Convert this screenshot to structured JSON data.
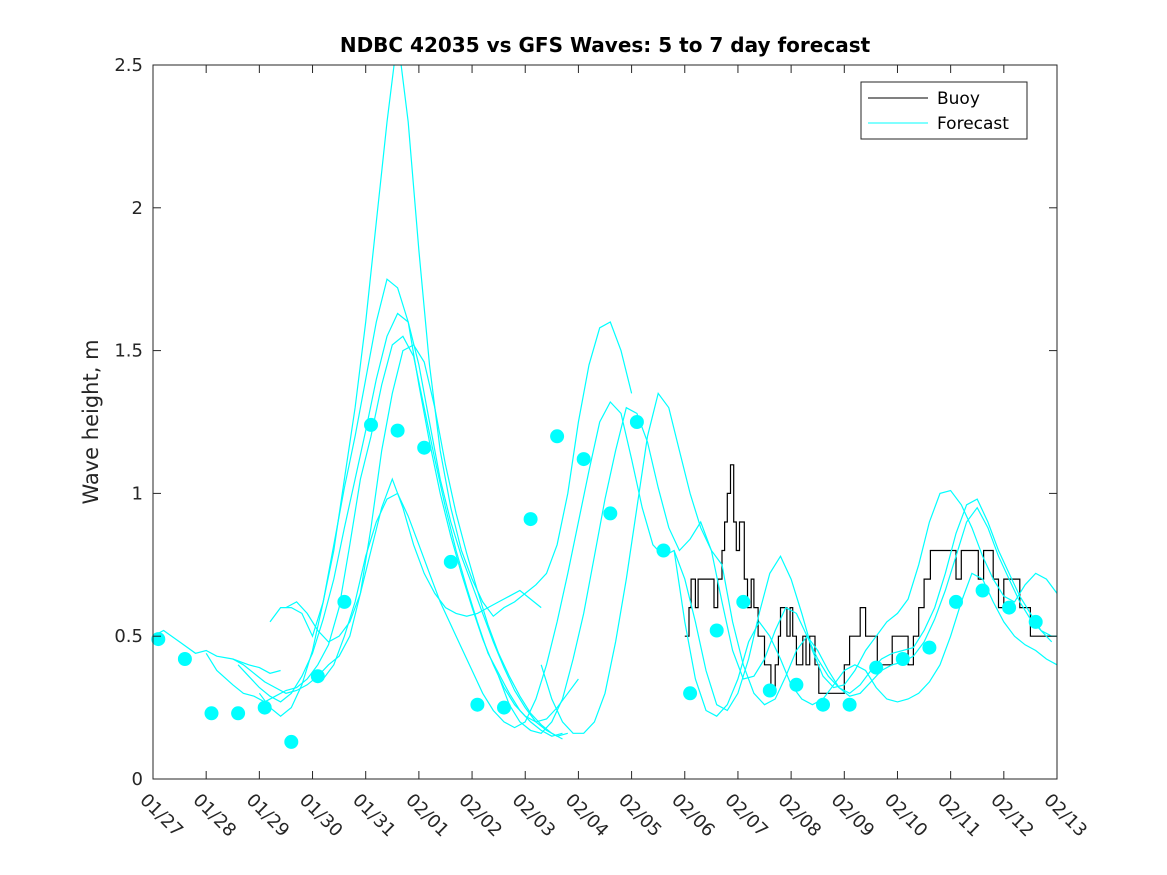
{
  "chart_data": {
    "type": "line",
    "title": "NDBC 42035 vs GFS Waves: 5 to 7 day forecast",
    "xlabel": "",
    "ylabel": "Wave height, m",
    "xlim": [
      0,
      17
    ],
    "ylim": [
      0,
      2.5
    ],
    "x_tick_labels": [
      "01/27",
      "01/28",
      "01/29",
      "01/30",
      "01/31",
      "02/01",
      "02/02",
      "02/03",
      "02/04",
      "02/05",
      "02/06",
      "02/07",
      "02/08",
      "02/09",
      "02/10",
      "02/11",
      "02/12",
      "02/13"
    ],
    "y_ticks": [
      0,
      0.5,
      1,
      1.5,
      2,
      2.5
    ],
    "y_tick_labels": [
      "0",
      "0.5",
      "1",
      "1.5",
      "2",
      "2.5"
    ],
    "legend": {
      "position": "top-right",
      "entries": [
        {
          "label": "Buoy",
          "color": "#000000"
        },
        {
          "label": "Forecast",
          "color": "#00ffff"
        }
      ]
    },
    "colors": {
      "buoy": "#000000",
      "forecast": "#00ffff",
      "markers": "#00ffff"
    },
    "series": [
      {
        "name": "Buoy",
        "x": [
          10.0,
          10.08,
          10.12,
          10.2,
          10.25,
          10.3,
          10.5,
          10.55,
          10.62,
          10.7,
          10.75,
          10.8,
          10.86,
          10.92,
          10.97,
          11.03,
          11.08,
          11.12,
          11.18,
          11.25,
          11.3,
          11.38,
          11.42,
          11.5,
          11.55,
          11.62,
          11.7,
          11.76,
          11.8,
          11.86,
          11.92,
          11.98,
          12.03,
          12.1,
          12.16,
          12.22,
          12.28,
          12.35,
          12.45,
          12.52,
          12.6,
          12.66,
          12.72,
          12.78,
          12.84,
          12.92,
          13.0,
          13.1,
          13.2,
          13.3,
          13.4,
          13.5,
          13.62,
          13.7,
          13.8,
          13.9,
          14.02,
          14.1,
          14.2,
          14.3,
          14.4,
          14.5,
          14.62,
          14.72,
          14.8,
          14.9,
          15.0,
          15.1,
          15.2,
          15.3,
          15.42,
          15.52,
          15.62,
          15.72,
          15.8,
          15.9,
          16.0,
          16.1,
          16.2,
          16.3,
          16.4,
          16.5,
          16.6,
          16.8,
          17.0
        ],
        "y": [
          0.5,
          0.6,
          0.7,
          0.6,
          0.7,
          0.7,
          0.7,
          0.6,
          0.7,
          0.8,
          0.9,
          1.0,
          1.1,
          0.9,
          0.8,
          0.9,
          0.9,
          0.7,
          0.6,
          0.7,
          0.6,
          0.5,
          0.5,
          0.4,
          0.4,
          0.3,
          0.4,
          0.5,
          0.6,
          0.6,
          0.5,
          0.6,
          0.5,
          0.4,
          0.4,
          0.5,
          0.4,
          0.5,
          0.4,
          0.3,
          0.3,
          0.3,
          0.3,
          0.3,
          0.3,
          0.3,
          0.4,
          0.5,
          0.5,
          0.6,
          0.5,
          0.5,
          0.4,
          0.4,
          0.4,
          0.5,
          0.5,
          0.5,
          0.4,
          0.5,
          0.6,
          0.7,
          0.8,
          0.8,
          0.8,
          0.8,
          0.8,
          0.7,
          0.8,
          0.8,
          0.8,
          0.7,
          0.8,
          0.8,
          0.7,
          0.6,
          0.7,
          0.7,
          0.7,
          0.6,
          0.6,
          0.5,
          0.5,
          0.5,
          0.5
        ]
      },
      {
        "name": "Forecast",
        "x": [
          0.0,
          0.2,
          0.5,
          0.8,
          1.0,
          1.2,
          1.5,
          1.8,
          2.0,
          2.2,
          2.4
        ],
        "y": [
          0.5,
          0.52,
          0.48,
          0.44,
          0.45,
          0.43,
          0.42,
          0.4,
          0.39,
          0.37,
          0.38
        ]
      },
      {
        "name": "Forecast",
        "x": [
          1.0,
          1.2,
          1.5,
          1.7,
          1.9,
          2.1,
          2.3,
          2.5,
          2.7,
          2.9,
          3.1,
          3.3,
          3.5,
          3.7,
          3.9,
          4.1,
          4.3,
          4.5,
          4.7,
          4.9,
          5.1,
          5.3,
          5.5,
          5.7,
          5.9,
          6.1,
          6.3,
          6.5,
          6.7,
          6.9,
          7.1,
          7.3,
          7.5,
          7.7
        ],
        "y": [
          0.44,
          0.38,
          0.33,
          0.3,
          0.29,
          0.27,
          0.29,
          0.31,
          0.32,
          0.35,
          0.4,
          0.47,
          0.6,
          0.82,
          1.05,
          1.2,
          1.38,
          1.52,
          1.55,
          1.48,
          1.3,
          1.12,
          0.95,
          0.8,
          0.67,
          0.55,
          0.44,
          0.37,
          0.3,
          0.24,
          0.2,
          0.17,
          0.15,
          0.16
        ]
      },
      {
        "name": "Forecast",
        "x": [
          1.5,
          1.7,
          1.9,
          2.1,
          2.3,
          2.5,
          2.7,
          2.9,
          3.1,
          3.3,
          3.5,
          3.7,
          3.9,
          4.1,
          4.3,
          4.5,
          4.7,
          4.9,
          5.1,
          5.3,
          5.5,
          5.7,
          5.9,
          6.1,
          6.3,
          6.5,
          6.7,
          6.9,
          7.1,
          7.3,
          7.5,
          7.7
        ],
        "y": [
          0.42,
          0.4,
          0.37,
          0.34,
          0.32,
          0.3,
          0.31,
          0.33,
          0.36,
          0.4,
          0.43,
          0.5,
          0.65,
          0.88,
          1.15,
          1.35,
          1.5,
          1.52,
          1.46,
          1.3,
          1.1,
          0.93,
          0.79,
          0.66,
          0.54,
          0.44,
          0.36,
          0.29,
          0.23,
          0.19,
          0.16,
          0.14
        ]
      },
      {
        "name": "Forecast",
        "x": [
          1.6,
          1.8,
          2.0,
          2.2,
          2.4,
          2.6,
          2.8,
          3.0,
          3.2,
          3.4,
          3.6,
          3.8,
          4.0,
          4.2,
          4.4,
          4.6,
          4.8,
          5.0,
          5.2,
          5.4,
          5.6,
          5.8,
          6.0,
          6.2,
          6.4,
          6.6,
          6.8,
          7.0,
          7.2,
          7.4,
          7.6,
          7.8
        ],
        "y": [
          0.4,
          0.36,
          0.32,
          0.29,
          0.27,
          0.3,
          0.36,
          0.44,
          0.56,
          0.7,
          0.88,
          1.05,
          1.22,
          1.4,
          1.55,
          1.63,
          1.6,
          1.45,
          1.25,
          1.05,
          0.9,
          0.78,
          0.68,
          0.58,
          0.48,
          0.39,
          0.31,
          0.25,
          0.2,
          0.17,
          0.15,
          0.16
        ]
      },
      {
        "name": "Forecast",
        "x": [
          2.0,
          2.2,
          2.4,
          2.6,
          2.8,
          3.0,
          3.2,
          3.4,
          3.6,
          3.8,
          4.0,
          4.2,
          4.4,
          4.6,
          4.8,
          5.0,
          5.2,
          5.4,
          5.6,
          5.8,
          6.0,
          6.2,
          6.4,
          6.6,
          6.8,
          7.0,
          7.2,
          7.4,
          7.6,
          7.8,
          8.0
        ],
        "y": [
          0.3,
          0.25,
          0.22,
          0.25,
          0.33,
          0.45,
          0.62,
          0.82,
          1.02,
          1.2,
          1.4,
          1.6,
          1.75,
          1.72,
          1.6,
          1.38,
          1.18,
          1.0,
          0.85,
          0.72,
          0.6,
          0.49,
          0.4,
          0.32,
          0.26,
          0.22,
          0.2,
          0.21,
          0.25,
          0.3,
          0.35
        ]
      },
      {
        "name": "Forecast",
        "x": [
          2.2,
          2.4,
          2.6,
          2.8,
          3.0,
          3.2,
          3.4,
          3.6,
          3.8,
          4.0,
          4.2,
          4.4,
          4.6,
          4.8,
          5.0,
          5.2,
          5.4,
          5.6,
          5.8,
          6.0,
          6.2,
          6.4,
          6.6,
          6.8,
          7.0,
          7.2,
          7.4,
          7.6,
          7.8,
          8.0,
          8.2,
          8.4,
          8.6,
          8.8,
          9.0
        ],
        "y": [
          0.55,
          0.6,
          0.6,
          0.58,
          0.5,
          0.62,
          0.8,
          1.05,
          1.3,
          1.6,
          1.95,
          2.3,
          2.6,
          2.3,
          1.85,
          1.45,
          1.15,
          0.95,
          0.8,
          0.7,
          0.62,
          0.57,
          0.6,
          0.62,
          0.65,
          0.68,
          0.72,
          0.82,
          1.0,
          1.25,
          1.45,
          1.58,
          1.6,
          1.5,
          1.35
        ]
      },
      {
        "name": "Forecast",
        "x": [
          2.5,
          2.7,
          2.9,
          3.1,
          3.3,
          3.5,
          3.7,
          3.9,
          4.1,
          4.3,
          4.5,
          4.7,
          4.9,
          5.1,
          5.3,
          5.5,
          5.7,
          5.9,
          6.1,
          6.3,
          6.5,
          6.7,
          6.9,
          7.1,
          7.3
        ],
        "y": [
          0.6,
          0.62,
          0.58,
          0.52,
          0.48,
          0.5,
          0.55,
          0.65,
          0.8,
          0.95,
          1.05,
          0.95,
          0.82,
          0.72,
          0.65,
          0.6,
          0.58,
          0.57,
          0.58,
          0.6,
          0.62,
          0.64,
          0.66,
          0.63,
          0.6
        ]
      },
      {
        "name": "Forecast",
        "x": [
          3.2,
          3.4,
          3.6,
          3.8,
          4.0,
          4.2,
          4.4,
          4.6,
          4.8,
          5.0,
          5.2,
          5.4,
          5.6,
          5.8,
          6.0,
          6.2,
          6.4,
          6.6,
          6.8,
          7.0,
          7.2,
          7.4,
          7.6,
          7.8,
          8.0,
          8.2,
          8.4,
          8.6,
          8.8,
          9.0,
          9.2,
          9.4,
          9.6,
          9.8,
          10.0,
          10.2,
          10.4,
          10.6,
          10.8,
          11.0,
          11.2,
          11.4,
          11.6,
          11.8,
          12.0,
          12.2,
          12.4,
          12.6,
          12.8,
          13.0,
          13.2,
          13.4,
          13.6,
          13.8,
          14.0,
          14.2,
          14.4,
          14.6,
          14.8,
          15.0,
          15.2,
          15.4,
          15.6,
          15.8,
          16.0,
          16.2,
          16.4,
          16.6,
          16.8,
          17.0
        ],
        "y": [
          0.35,
          0.4,
          0.5,
          0.62,
          0.78,
          0.9,
          0.98,
          1.0,
          0.92,
          0.82,
          0.72,
          0.62,
          0.54,
          0.46,
          0.38,
          0.3,
          0.24,
          0.2,
          0.18,
          0.2,
          0.28,
          0.4,
          0.55,
          0.72,
          0.9,
          1.08,
          1.25,
          1.32,
          1.28,
          1.12,
          0.95,
          0.82,
          0.78,
          0.8,
          0.7,
          0.55,
          0.38,
          0.26,
          0.24,
          0.3,
          0.42,
          0.58,
          0.72,
          0.78,
          0.7,
          0.58,
          0.45,
          0.36,
          0.32,
          0.33,
          0.38,
          0.45,
          0.5,
          0.55,
          0.58,
          0.63,
          0.75,
          0.9,
          1.0,
          1.01,
          0.96,
          0.88,
          0.78,
          0.7,
          0.64,
          0.62,
          0.68,
          0.72,
          0.7,
          0.65
        ]
      },
      {
        "name": "Forecast",
        "x": [
          6.5,
          6.7,
          6.9,
          7.1,
          7.3,
          7.5,
          7.7,
          7.9,
          8.1,
          8.3,
          8.5,
          8.7,
          8.9,
          9.1,
          9.3,
          9.5,
          9.7,
          9.9,
          10.1,
          10.3,
          10.5,
          10.7,
          10.9,
          11.1,
          11.3,
          11.5,
          11.7,
          11.9,
          12.1,
          12.3,
          12.5,
          12.7,
          12.9,
          13.1,
          13.3,
          13.5,
          13.7,
          13.9,
          14.1,
          14.3,
          14.5,
          14.7,
          14.9,
          15.1,
          15.3,
          15.5,
          15.7,
          15.9,
          16.1,
          16.3,
          16.5,
          16.7,
          16.9
        ],
        "y": [
          0.36,
          0.26,
          0.2,
          0.17,
          0.16,
          0.2,
          0.28,
          0.42,
          0.58,
          0.78,
          0.98,
          1.15,
          1.3,
          1.28,
          1.18,
          1.02,
          0.88,
          0.8,
          0.84,
          0.9,
          0.8,
          0.62,
          0.45,
          0.35,
          0.36,
          0.42,
          0.52,
          0.6,
          0.58,
          0.5,
          0.42,
          0.36,
          0.32,
          0.3,
          0.33,
          0.38,
          0.42,
          0.44,
          0.45,
          0.46,
          0.52,
          0.6,
          0.72,
          0.86,
          0.96,
          0.98,
          0.9,
          0.8,
          0.72,
          0.64,
          0.58,
          0.52,
          0.48
        ]
      },
      {
        "name": "Forecast",
        "x": [
          7.3,
          7.5,
          7.7,
          7.9,
          8.1,
          8.3,
          8.5,
          8.7,
          8.9,
          9.1,
          9.3,
          9.5,
          9.7,
          9.9,
          10.1,
          10.3,
          10.5,
          10.7,
          10.9,
          11.1,
          11.3,
          11.5,
          11.7,
          11.9,
          12.1,
          12.3,
          12.5,
          12.7,
          12.9,
          13.1,
          13.3,
          13.5,
          13.7,
          13.9,
          14.1,
          14.3,
          14.5,
          14.7,
          14.9,
          15.1,
          15.3,
          15.5,
          15.7,
          15.9,
          16.1,
          16.3,
          16.5,
          16.7,
          16.9,
          17.0
        ],
        "y": [
          0.4,
          0.28,
          0.2,
          0.16,
          0.16,
          0.2,
          0.3,
          0.48,
          0.7,
          0.95,
          1.2,
          1.35,
          1.3,
          1.15,
          1.0,
          0.88,
          0.8,
          0.75,
          0.55,
          0.4,
          0.3,
          0.26,
          0.28,
          0.36,
          0.45,
          0.5,
          0.45,
          0.38,
          0.32,
          0.29,
          0.3,
          0.34,
          0.38,
          0.4,
          0.41,
          0.43,
          0.48,
          0.56,
          0.66,
          0.78,
          0.9,
          0.95,
          0.88,
          0.78,
          0.7,
          0.62,
          0.56,
          0.52,
          0.5,
          0.5
        ]
      },
      {
        "name": "Forecast",
        "x": [
          9.8,
          10.0,
          10.2,
          10.4,
          10.6,
          10.8,
          11.0,
          11.2,
          11.4,
          11.6,
          11.8,
          12.0,
          12.2,
          12.4,
          12.6,
          12.8,
          13.0,
          13.2,
          13.4,
          13.6,
          13.8,
          14.0,
          14.2,
          14.4,
          14.6,
          14.8,
          15.0,
          15.2,
          15.4,
          15.6,
          15.8,
          16.0,
          16.2,
          16.4,
          16.6,
          16.8,
          17.0
        ],
        "y": [
          0.8,
          0.55,
          0.35,
          0.24,
          0.22,
          0.26,
          0.35,
          0.48,
          0.55,
          0.5,
          0.42,
          0.33,
          0.28,
          0.26,
          0.28,
          0.33,
          0.38,
          0.4,
          0.38,
          0.32,
          0.28,
          0.27,
          0.28,
          0.3,
          0.34,
          0.4,
          0.5,
          0.62,
          0.72,
          0.7,
          0.62,
          0.55,
          0.5,
          0.47,
          0.45,
          0.42,
          0.4
        ]
      }
    ],
    "markers": {
      "name": "Forecast points",
      "x": [
        0.1,
        0.6,
        1.1,
        1.6,
        2.1,
        2.6,
        3.1,
        3.6,
        4.1,
        4.6,
        5.1,
        5.6,
        6.1,
        6.6,
        7.1,
        7.6,
        8.1,
        8.6,
        9.1,
        9.6,
        10.1,
        10.6,
        11.1,
        11.6,
        12.1,
        12.6,
        13.1,
        13.6,
        14.1,
        14.6,
        15.1,
        15.6,
        16.1,
        16.6
      ],
      "y": [
        0.49,
        0.42,
        0.23,
        0.23,
        0.25,
        0.13,
        0.36,
        0.62,
        1.24,
        1.22,
        1.16,
        0.76,
        0.26,
        0.25,
        0.91,
        1.2,
        1.12,
        0.93,
        1.25,
        0.8,
        0.3,
        0.52,
        0.62,
        0.31,
        0.33,
        0.26,
        0.26,
        0.39,
        0.42,
        0.46,
        0.62,
        0.66,
        0.6,
        0.55
      ]
    }
  }
}
